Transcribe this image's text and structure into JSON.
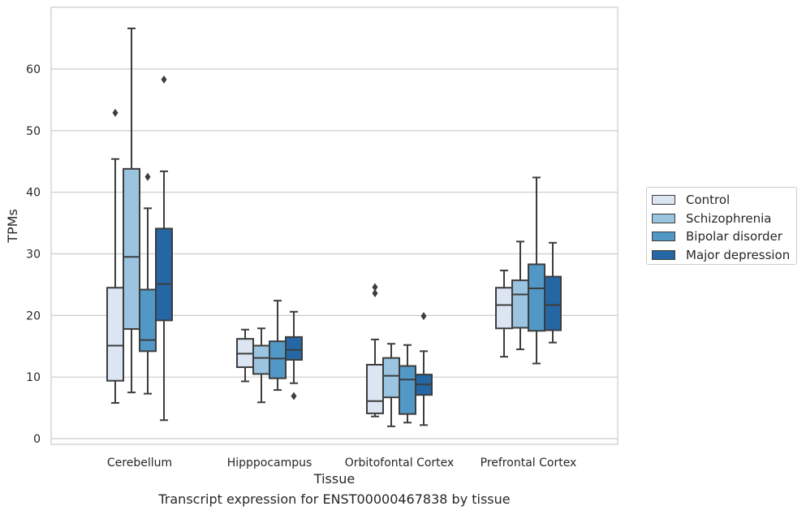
{
  "caption": "Transcript expression for ENST00000467838 by tissue",
  "chart_data": {
    "type": "box",
    "xlabel": "Tissue",
    "ylabel": "TPMs",
    "ylim": [
      -1,
      70
    ],
    "yticks": [
      0,
      10,
      20,
      30,
      40,
      50,
      60
    ],
    "grid": "horizontal",
    "legend_position": "right",
    "categories": [
      "Cerebellum",
      "Hipppocampus",
      "Orbitofontal Cortex",
      "Prefrontal Cortex"
    ],
    "series": [
      {
        "name": "Control",
        "color": "#dbe6f2",
        "boxes": [
          {
            "whislo": 5.8,
            "q1": 9.4,
            "med": 15.1,
            "q3": 24.5,
            "whishi": 45.4,
            "fliers": [
              52.9
            ]
          },
          {
            "whislo": 9.3,
            "q1": 11.6,
            "med": 13.8,
            "q3": 16.2,
            "whishi": 17.7,
            "fliers": []
          },
          {
            "whislo": 3.6,
            "q1": 4.1,
            "med": 6.1,
            "q3": 12.0,
            "whishi": 16.1,
            "fliers": [
              23.6,
              24.6
            ]
          },
          {
            "whislo": 13.3,
            "q1": 17.9,
            "med": 21.7,
            "q3": 24.5,
            "whishi": 27.3,
            "fliers": []
          }
        ]
      },
      {
        "name": "Schizophrenia",
        "color": "#9ac4df",
        "boxes": [
          {
            "whislo": 7.5,
            "q1": 17.8,
            "med": 29.5,
            "q3": 43.8,
            "whishi": 66.6,
            "fliers": []
          },
          {
            "whislo": 5.9,
            "q1": 10.5,
            "med": 13.1,
            "q3": 15.1,
            "whishi": 17.9,
            "fliers": []
          },
          {
            "whislo": 2.0,
            "q1": 6.7,
            "med": 10.2,
            "q3": 13.1,
            "whishi": 15.4,
            "fliers": []
          },
          {
            "whislo": 14.5,
            "q1": 18.0,
            "med": 23.4,
            "q3": 25.7,
            "whishi": 32.0,
            "fliers": []
          }
        ]
      },
      {
        "name": "Bipolar disorder",
        "color": "#5298c7",
        "boxes": [
          {
            "whislo": 7.3,
            "q1": 14.2,
            "med": 16.0,
            "q3": 24.2,
            "whishi": 37.4,
            "fliers": [
              42.5
            ]
          },
          {
            "whislo": 7.9,
            "q1": 9.8,
            "med": 13.0,
            "q3": 15.8,
            "whishi": 22.4,
            "fliers": []
          },
          {
            "whislo": 2.6,
            "q1": 4.0,
            "med": 9.6,
            "q3": 11.8,
            "whishi": 15.2,
            "fliers": []
          },
          {
            "whislo": 12.2,
            "q1": 17.5,
            "med": 24.4,
            "q3": 28.3,
            "whishi": 42.4,
            "fliers": []
          }
        ]
      },
      {
        "name": "Major depression",
        "color": "#2566a5",
        "boxes": [
          {
            "whislo": 3.0,
            "q1": 19.2,
            "med": 25.1,
            "q3": 34.1,
            "whishi": 43.4,
            "fliers": [
              58.3
            ]
          },
          {
            "whislo": 9.0,
            "q1": 12.8,
            "med": 14.4,
            "q3": 16.5,
            "whishi": 20.6,
            "fliers": [
              6.9
            ]
          },
          {
            "whislo": 2.2,
            "q1": 7.1,
            "med": 8.8,
            "q3": 10.4,
            "whishi": 14.2,
            "fliers": [
              19.9
            ]
          },
          {
            "whislo": 15.6,
            "q1": 17.6,
            "med": 21.7,
            "q3": 26.3,
            "whishi": 31.8,
            "fliers": []
          }
        ]
      }
    ]
  }
}
